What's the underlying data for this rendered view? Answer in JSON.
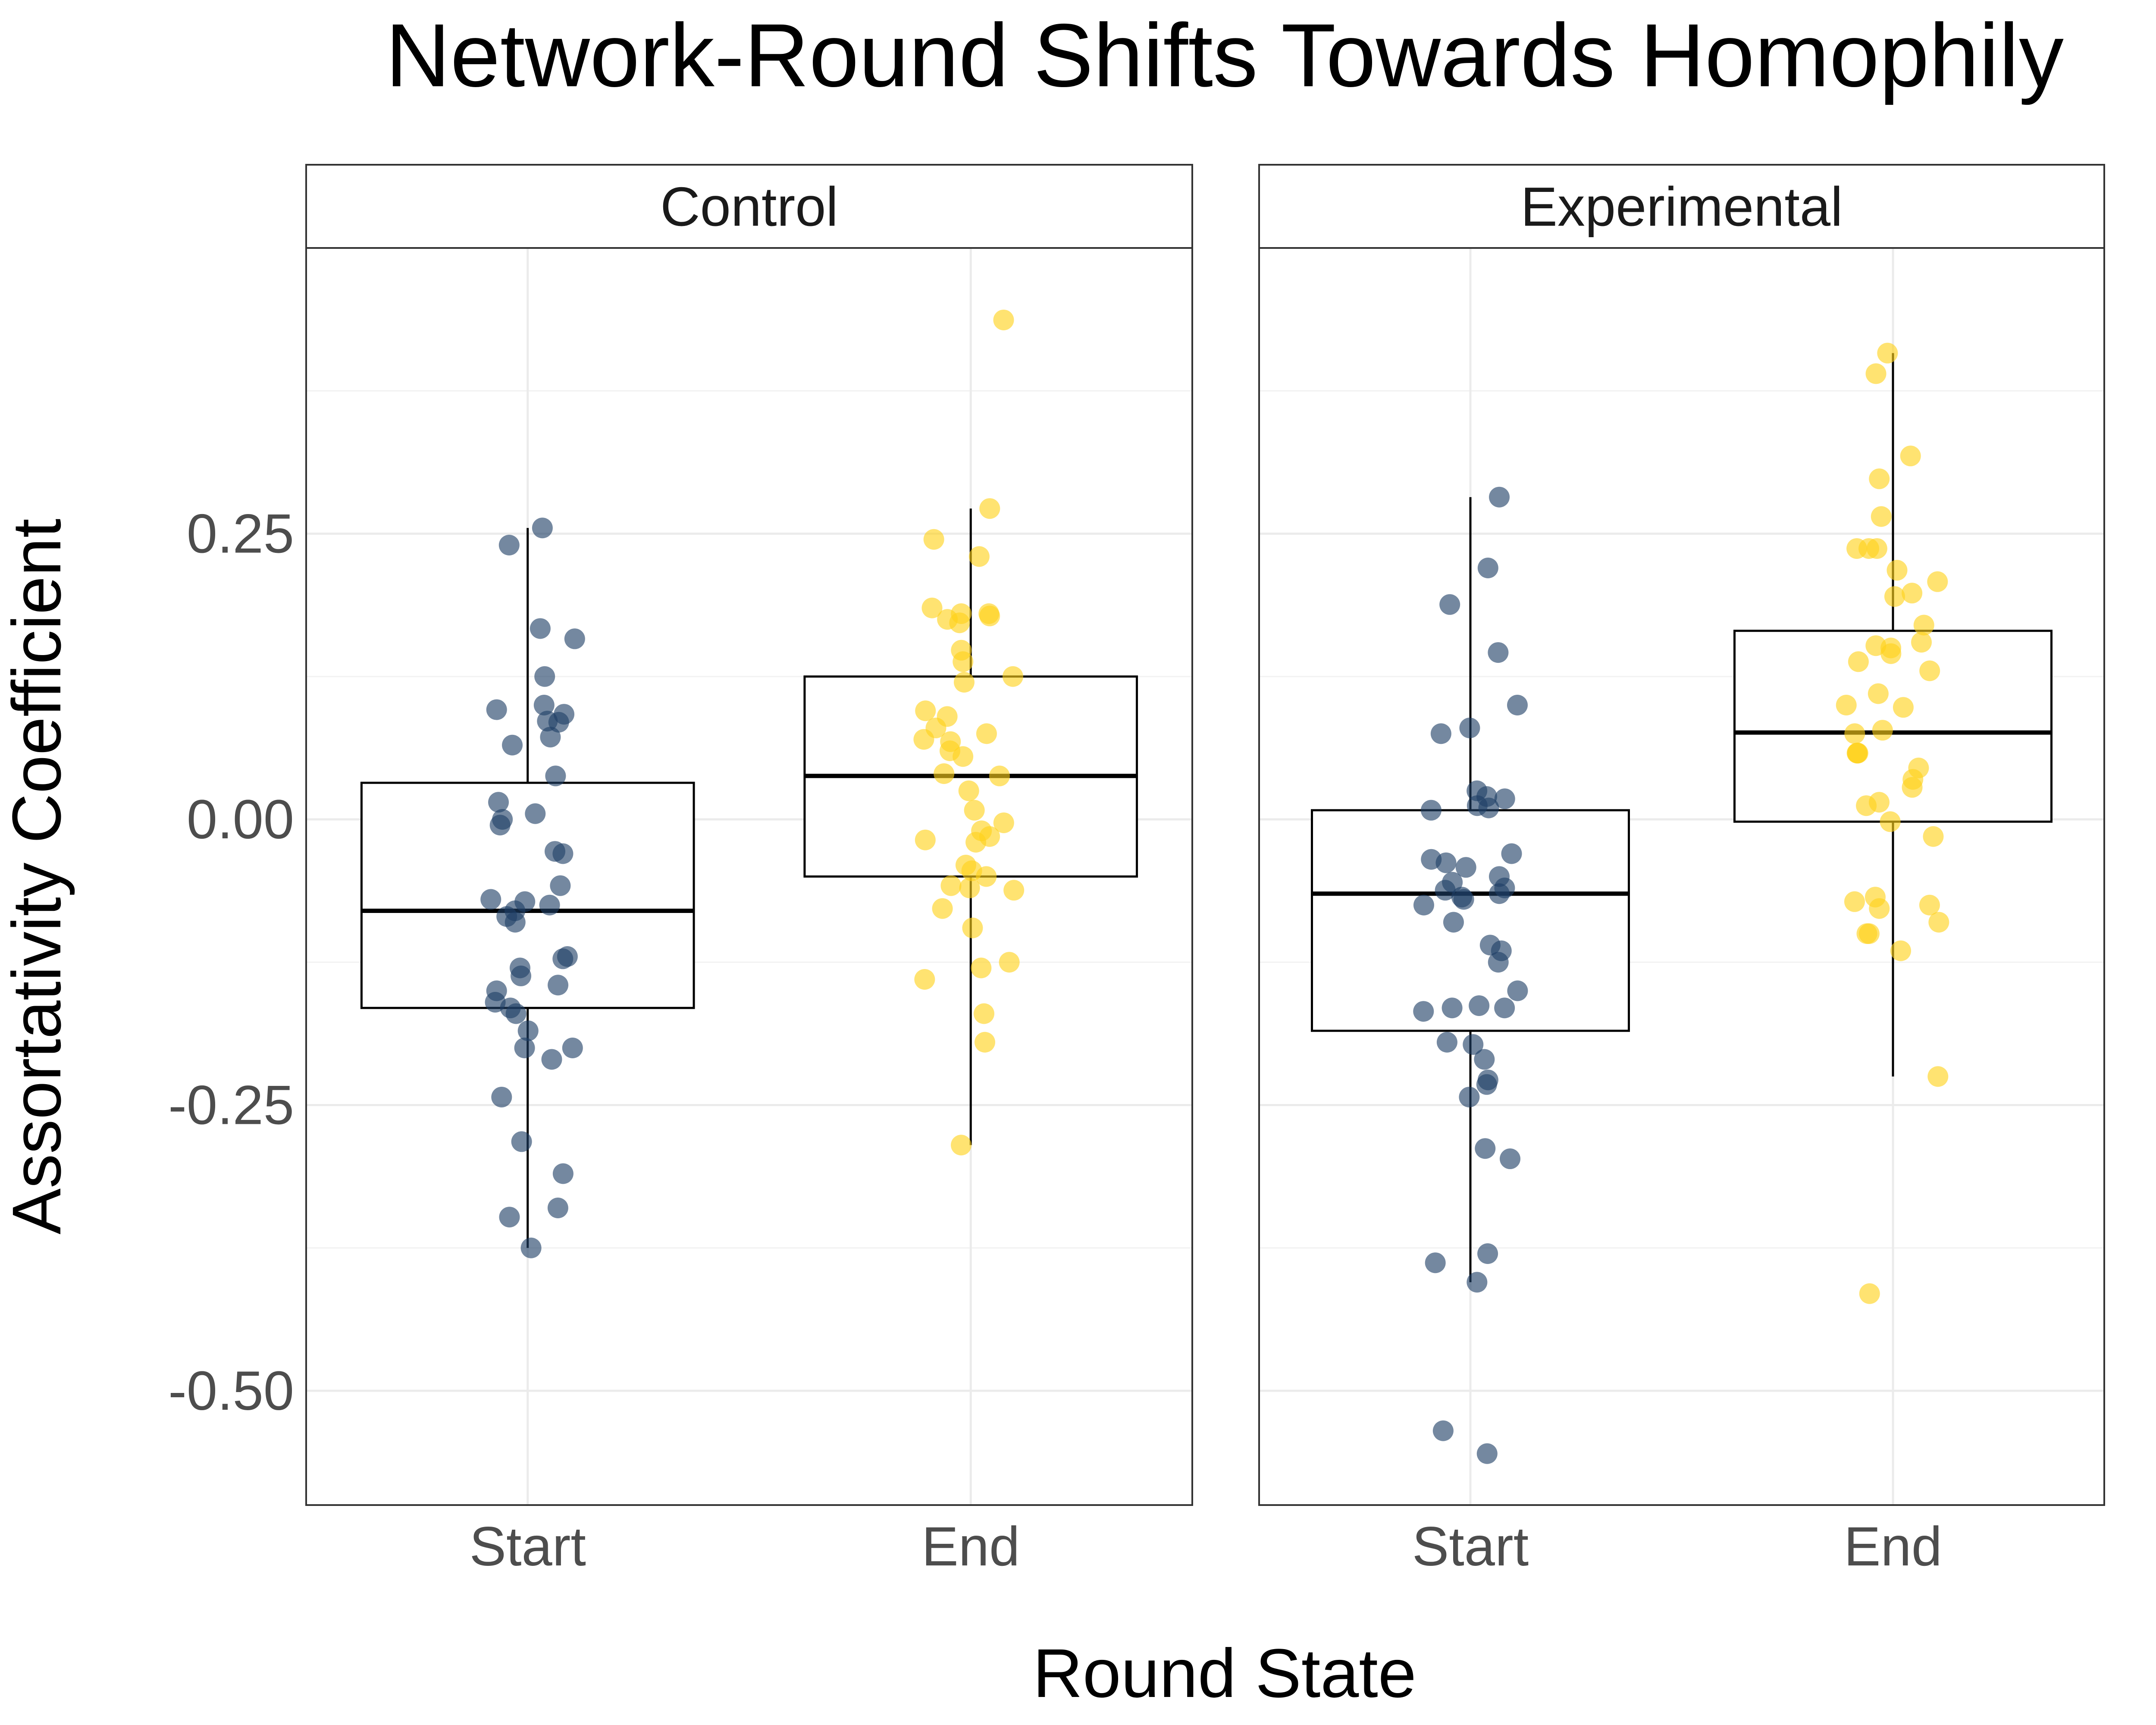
{
  "chart_data": {
    "type": "box",
    "title": "Network-Round Shifts Towards Homophily",
    "xlabel": "Round State",
    "ylabel": "Assortativity Coefficient",
    "ylim": [
      -0.6,
      0.5
    ],
    "yticks": [
      0.25,
      0.0,
      -0.25,
      -0.5
    ],
    "ytick_labels": [
      "0.25",
      "0.00",
      "-0.25",
      "-0.50"
    ],
    "categories": [
      "Start",
      "End"
    ],
    "grid": "on",
    "legend": "none",
    "colors": {
      "Start": "#1f3f66",
      "End": "#ffd21a"
    },
    "facets": [
      {
        "name": "Control",
        "boxes": [
          {
            "category": "Start",
            "stats": {
              "lower_whisker": -0.375,
              "q1": -0.165,
              "median": -0.08,
              "q3": 0.032,
              "upper_whisker": 0.255
            },
            "points": [
              0.255,
              0.24,
              0.167,
              0.158,
              0.125,
              0.1,
              0.096,
              0.092,
              0.086,
              0.085,
              0.072,
              0.065,
              0.038,
              0.015,
              0.005,
              0.0,
              -0.005,
              -0.028,
              -0.03,
              -0.058,
              -0.07,
              -0.072,
              -0.075,
              -0.08,
              -0.085,
              -0.09,
              -0.12,
              -0.122,
              -0.13,
              -0.137,
              -0.145,
              -0.15,
              -0.16,
              -0.165,
              -0.17,
              -0.185,
              -0.2,
              -0.2,
              -0.21,
              -0.243,
              -0.282,
              -0.31,
              -0.34,
              -0.348,
              -0.375
            ]
          },
          {
            "category": "End",
            "stats": {
              "lower_whisker": -0.285,
              "q1": -0.05,
              "median": 0.038,
              "q3": 0.125,
              "upper_whisker": 0.272
            },
            "points": [
              0.437,
              0.272,
              0.245,
              0.23,
              0.185,
              0.18,
              0.18,
              0.178,
              0.175,
              0.172,
              0.148,
              0.138,
              0.125,
              0.12,
              0.095,
              0.09,
              0.08,
              0.075,
              0.07,
              0.068,
              0.06,
              0.055,
              0.04,
              0.038,
              0.025,
              0.008,
              -0.003,
              -0.01,
              -0.015,
              -0.018,
              -0.02,
              -0.04,
              -0.045,
              -0.05,
              -0.058,
              -0.06,
              -0.062,
              -0.078,
              -0.095,
              -0.125,
              -0.13,
              -0.14,
              -0.17,
              -0.195,
              -0.285
            ]
          }
        ]
      },
      {
        "name": "Experimental",
        "boxes": [
          {
            "category": "Start",
            "stats": {
              "lower_whisker": -0.405,
              "q1": -0.185,
              "median": -0.065,
              "q3": 0.008,
              "upper_whisker": 0.282
            },
            "points": [
              0.282,
              0.22,
              0.188,
              0.146,
              0.1,
              0.08,
              0.075,
              0.025,
              0.02,
              0.018,
              0.012,
              0.01,
              0.008,
              -0.03,
              -0.035,
              -0.038,
              -0.042,
              -0.05,
              -0.055,
              -0.06,
              -0.062,
              -0.065,
              -0.068,
              -0.07,
              -0.075,
              -0.09,
              -0.11,
              -0.115,
              -0.125,
              -0.15,
              -0.163,
              -0.165,
              -0.165,
              -0.168,
              -0.195,
              -0.197,
              -0.21,
              -0.228,
              -0.232,
              -0.243,
              -0.288,
              -0.297,
              -0.38,
              -0.388,
              -0.405,
              -0.535,
              -0.555
            ]
          },
          {
            "category": "End",
            "stats": {
              "lower_whisker": -0.225,
              "q1": -0.002,
              "median": 0.076,
              "q3": 0.165,
              "upper_whisker": 0.408
            },
            "points": [
              0.408,
              0.39,
              0.318,
              0.298,
              0.265,
              0.237,
              0.237,
              0.237,
              0.218,
              0.208,
              0.198,
              0.195,
              0.17,
              0.155,
              0.152,
              0.15,
              0.145,
              0.138,
              0.13,
              0.11,
              0.1,
              0.098,
              0.078,
              0.075,
              0.058,
              0.058,
              0.058,
              0.045,
              0.035,
              0.028,
              0.015,
              0.012,
              -0.002,
              -0.015,
              -0.068,
              -0.072,
              -0.075,
              -0.078,
              -0.09,
              -0.1,
              -0.1,
              -0.115,
              -0.225,
              -0.415
            ]
          }
        ]
      }
    ]
  }
}
